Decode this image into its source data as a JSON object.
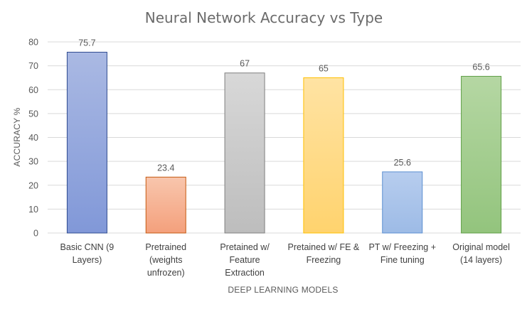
{
  "chart_data": {
    "type": "bar",
    "title": "Neural Network Accuracy vs Type",
    "xlabel": "DEEP LEARNING MODELS",
    "ylabel": "ACCURACY %",
    "ylim": [
      0,
      80
    ],
    "yticks": [
      0,
      10,
      20,
      30,
      40,
      50,
      60,
      70,
      80
    ],
    "grid": true,
    "categories": [
      [
        "Basic CNN (9",
        "Layers)"
      ],
      [
        "Pretrained",
        "(weights",
        "unfrozen)"
      ],
      [
        "Pretained w/",
        "Feature",
        "Extraction"
      ],
      [
        "Pretained w/ FE &",
        "Freezing"
      ],
      [
        "PT w/ Freezing +",
        "Fine tuning"
      ],
      [
        "Original model",
        "(14 layers)"
      ]
    ],
    "values": [
      75.7,
      23.4,
      67,
      65,
      25.6,
      65.6
    ],
    "data_labels": [
      "75.7",
      "23.4",
      "67",
      "65",
      "25.6",
      "65.6"
    ],
    "colors": [
      {
        "top": "#aab9e3",
        "bottom": "#8198d8",
        "stroke": "#2f4b8f"
      },
      {
        "top": "#f8c6ad",
        "bottom": "#f4a07c",
        "stroke": "#c55a11"
      },
      {
        "top": "#d8d8d8",
        "bottom": "#bdbdbd",
        "stroke": "#7f7f7f"
      },
      {
        "top": "#ffe3a3",
        "bottom": "#ffd36e",
        "stroke": "#ffc000"
      },
      {
        "top": "#b7cdee",
        "bottom": "#9dbbe6",
        "stroke": "#5b8fd1"
      },
      {
        "top": "#b5d7a3",
        "bottom": "#93c47d",
        "stroke": "#5e9e44"
      }
    ]
  }
}
